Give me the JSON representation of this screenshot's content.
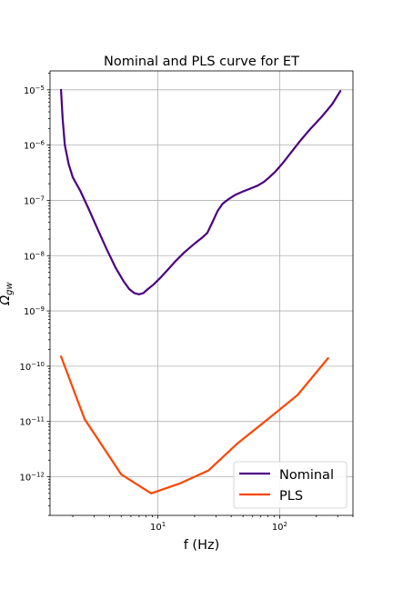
{
  "chart_data": {
    "type": "line",
    "title": "Nominal and PLS curve for ET",
    "xlabel": "f (Hz)",
    "ylabel_base": "Ω",
    "ylabel_sub": "gw",
    "xscale": "log",
    "yscale": "log",
    "xlim": [
      1.3,
      400
    ],
    "ylim": [
      2e-13,
      2.2e-05
    ],
    "grid": true,
    "legend_position": "lower-right",
    "x_ticks": [
      {
        "value": 10,
        "base": "10",
        "exp": "1"
      },
      {
        "value": 100,
        "base": "10",
        "exp": "2"
      }
    ],
    "y_ticks": [
      {
        "value": 1e-12,
        "base": "10",
        "exp": "−12"
      },
      {
        "value": 1e-11,
        "base": "10",
        "exp": "−11"
      },
      {
        "value": 1e-10,
        "base": "10",
        "exp": "−10"
      },
      {
        "value": 1e-09,
        "base": "10",
        "exp": "−9"
      },
      {
        "value": 1e-08,
        "base": "10",
        "exp": "−8"
      },
      {
        "value": 1e-07,
        "base": "10",
        "exp": "−7"
      },
      {
        "value": 1e-06,
        "base": "10",
        "exp": "−6"
      },
      {
        "value": 1e-05,
        "base": "10",
        "exp": "−5"
      }
    ],
    "series": [
      {
        "name": "Nominal",
        "color": "#4b0082",
        "x": [
          1.6,
          1.65,
          1.72,
          1.85,
          2.0,
          2.3,
          2.7,
          3.2,
          3.8,
          4.5,
          5.2,
          5.8,
          6.4,
          7.0,
          7.6,
          8.3,
          9.2,
          10.5,
          12.0,
          14.0,
          16.5,
          19.0,
          21.0,
          23.0,
          25.5,
          28.0,
          31.0,
          34.0,
          38.0,
          43.0,
          50.0,
          58.0,
          66.0,
          74.0,
          82.0,
          92.0,
          105.0,
          125.0,
          150.0,
          180.0,
          220.0,
          270.0,
          315.0
        ],
        "y": [
          1e-05,
          3e-06,
          1e-06,
          4.5e-07,
          2.6e-07,
          1.5e-07,
          7e-08,
          3e-08,
          1.3e-08,
          6e-09,
          3.5e-09,
          2.5e-09,
          2.1e-09,
          2e-09,
          2.1e-09,
          2.5e-09,
          3e-09,
          4e-09,
          5.5e-09,
          8e-09,
          1.15e-08,
          1.5e-08,
          1.8e-08,
          2.1e-08,
          2.6e-08,
          4e-08,
          6.5e-08,
          8.7e-08,
          1.05e-07,
          1.25e-07,
          1.45e-07,
          1.65e-07,
          1.85e-07,
          2.15e-07,
          2.6e-07,
          3.3e-07,
          4.6e-07,
          7.5e-07,
          1.25e-06,
          2e-06,
          3.2e-06,
          5.5e-06,
          9.5e-06
        ]
      },
      {
        "name": "PLS",
        "color": "#ff4500",
        "x": [
          1.6,
          2.5,
          5.0,
          8.8,
          15.0,
          26.0,
          45.0,
          80.0,
          140.0,
          250.0
        ],
        "y": [
          1.5e-10,
          1.1e-11,
          1.1e-12,
          5e-13,
          7.5e-13,
          1.3e-12,
          4e-12,
          1.1e-11,
          3e-11,
          1.4e-10
        ]
      }
    ]
  }
}
